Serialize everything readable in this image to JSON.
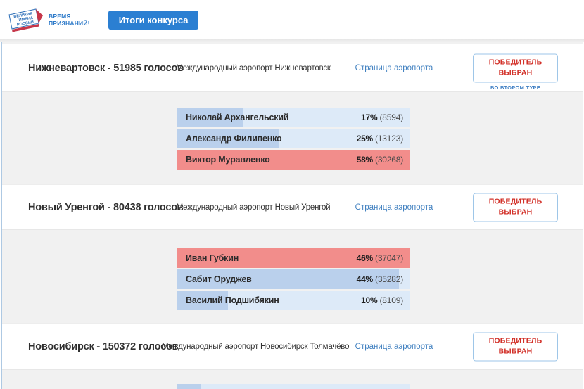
{
  "header": {
    "logo_lines": [
      "ВЕЛИКИЕ",
      "ИМЕНА",
      "РОССИИ"
    ],
    "tagline_line1": "ВРЕМЯ",
    "tagline_line2": "ПРИЗНАНИЙ!",
    "results_button": "Итоги конкурса"
  },
  "colors": {
    "accent_blue": "#2b7fd2",
    "link_blue": "#4080c0",
    "winner_red_bar": "#f28d8b",
    "bar_bg_blue": "#ddeaf8",
    "bar_fill_blue": "#bad0ec",
    "button_text_red": "#d22f27"
  },
  "sections": [
    {
      "title": "Нижневартовск - 51985 голосов",
      "airport": "Международный аэропорт Нижневартовск",
      "link": "Страница аэропорта",
      "winner_button": "ПОБЕДИТЕЛЬ ВЫБРАН",
      "note": "ВО ВТОРОМ ТУРЕ",
      "candidates": [
        {
          "name": "Николай Архангельский",
          "percent": "17%",
          "votes": "(8594)",
          "winner": false,
          "fill": 28.4
        },
        {
          "name": "Александр Филипенко",
          "percent": "25%",
          "votes": "(13123)",
          "winner": false,
          "fill": 43.4
        },
        {
          "name": "Виктор Муравленко",
          "percent": "58%",
          "votes": "(30268)",
          "winner": true,
          "fill": 100
        }
      ]
    },
    {
      "title": "Новый Уренгой - 80438 голосов",
      "airport": "Международный аэропорт Новый Уренгой",
      "link": "Страница аэропорта",
      "winner_button": "ПОБЕДИТЕЛЬ ВЫБРАН",
      "note": "",
      "candidates": [
        {
          "name": "Иван Губкин",
          "percent": "46%",
          "votes": "(37047)",
          "winner": true,
          "fill": 100
        },
        {
          "name": "Сабит Оруджев",
          "percent": "44%",
          "votes": "(35282)",
          "winner": false,
          "fill": 95.2
        },
        {
          "name": "Василий Подшибякин",
          "percent": "10%",
          "votes": "(8109)",
          "winner": false,
          "fill": 21.9
        }
      ]
    },
    {
      "title": "Новосибирск - 150372 голосов",
      "airport": "Международный аэропорт Новосибирск Толмачёво",
      "link": "Страница аэропорта",
      "winner_button": "ПОБЕДИТЕЛЬ ВЫБРАН",
      "note": "",
      "candidates": [
        {
          "name": "",
          "percent": "",
          "votes": "",
          "winner": false,
          "fill": 10
        }
      ]
    }
  ]
}
